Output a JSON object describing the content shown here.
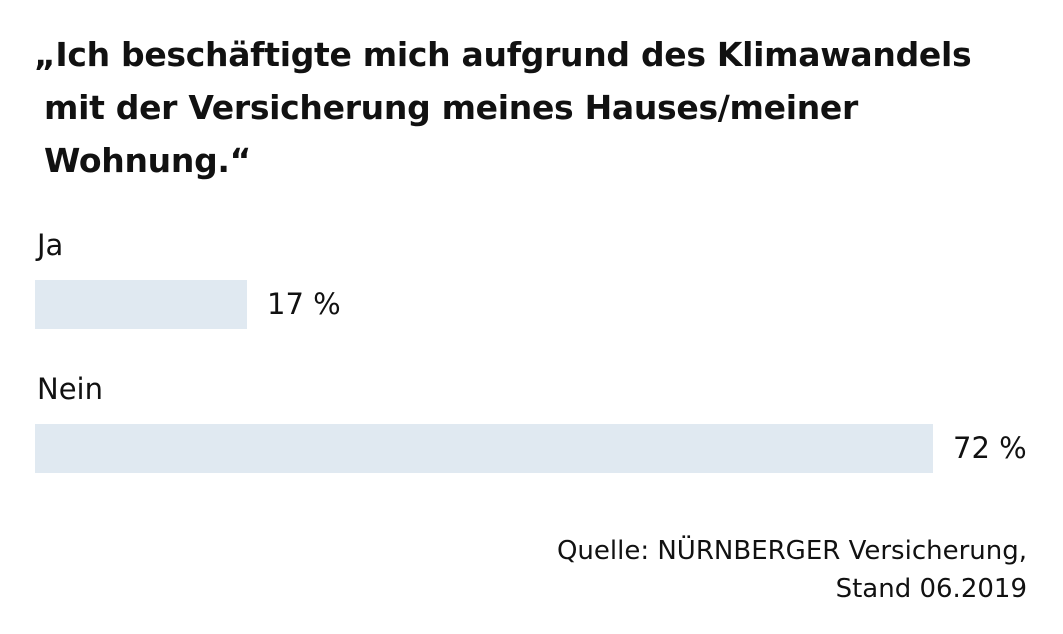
{
  "chart_data": {
    "type": "bar",
    "orientation": "horizontal",
    "title_lines": [
      "„Ich beschäftigte mich aufgrund des Klimawandels",
      "mit der Versicherung meines Hauses/meiner",
      "Wohnung.“"
    ],
    "categories": [
      "Ja",
      "Nein"
    ],
    "values": [
      17,
      72
    ],
    "value_labels": [
      "17 %",
      "72 %"
    ],
    "unit": "%",
    "bar_color": "#e0e9f1",
    "source_lines": [
      "Quelle: NÜRNBERGER Versicherung,",
      "Stand 06.2019"
    ]
  }
}
